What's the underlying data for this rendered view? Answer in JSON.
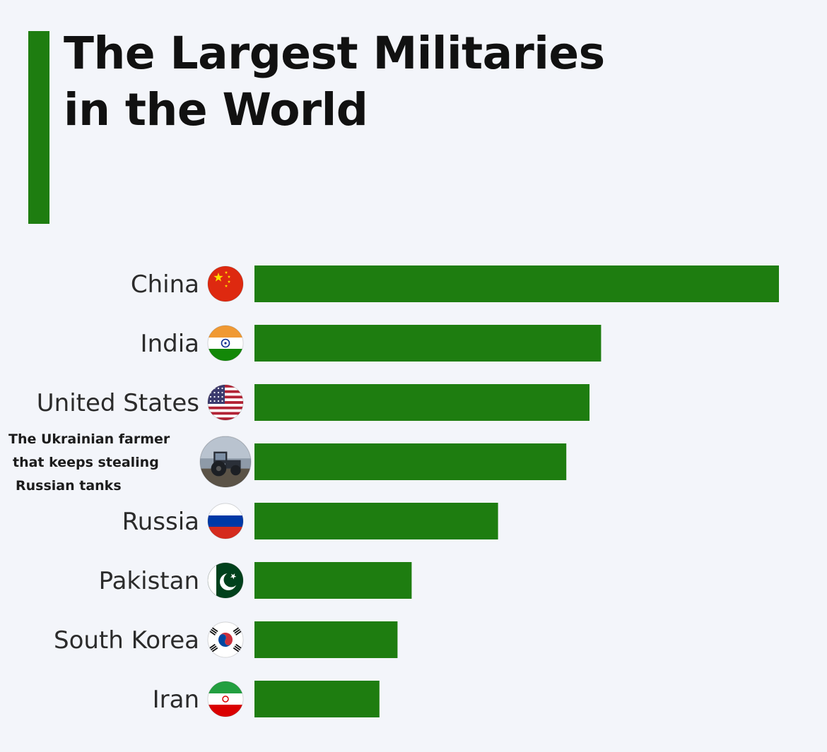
{
  "title_lines": [
    "The Largest Militaries",
    "in the World"
  ],
  "colors": {
    "background": "#f3f5fa",
    "accent": "#1e7d10",
    "bar": "#1e7d10",
    "title": "#111111",
    "label": "#2b2b2b"
  },
  "chart_data": {
    "type": "bar",
    "orientation": "horizontal",
    "title": "The Largest Militaries in the World",
    "xlabel": "",
    "ylabel": "",
    "axis_visible": false,
    "grid": false,
    "legend": "none",
    "categories": [
      "China",
      "India",
      "United States",
      "The Ukrainian farmer that keeps stealing Russian tanks",
      "Russia",
      "Pakistan",
      "South Korea",
      "Iran"
    ],
    "category_lines": [
      [
        "China"
      ],
      [
        "India"
      ],
      [
        "United States"
      ],
      [
        "The Ukrainian farmer",
        "that keeps stealing",
        "Russian tanks"
      ],
      [
        "Russia"
      ],
      [
        "Pakistan"
      ],
      [
        "South Korea"
      ],
      [
        "Iran"
      ]
    ],
    "icons": [
      "china-flag-icon",
      "india-flag-icon",
      "usa-flag-icon",
      "tractor-photo-icon",
      "russia-flag-icon",
      "pakistan-flag-icon",
      "south-korea-flag-icon",
      "iran-flag-icon"
    ],
    "values": [
      2035,
      1345,
      1300,
      1210,
      945,
      610,
      555,
      485
    ],
    "units": "relative (no values printed)",
    "xlim": [
      0,
      2035
    ]
  }
}
